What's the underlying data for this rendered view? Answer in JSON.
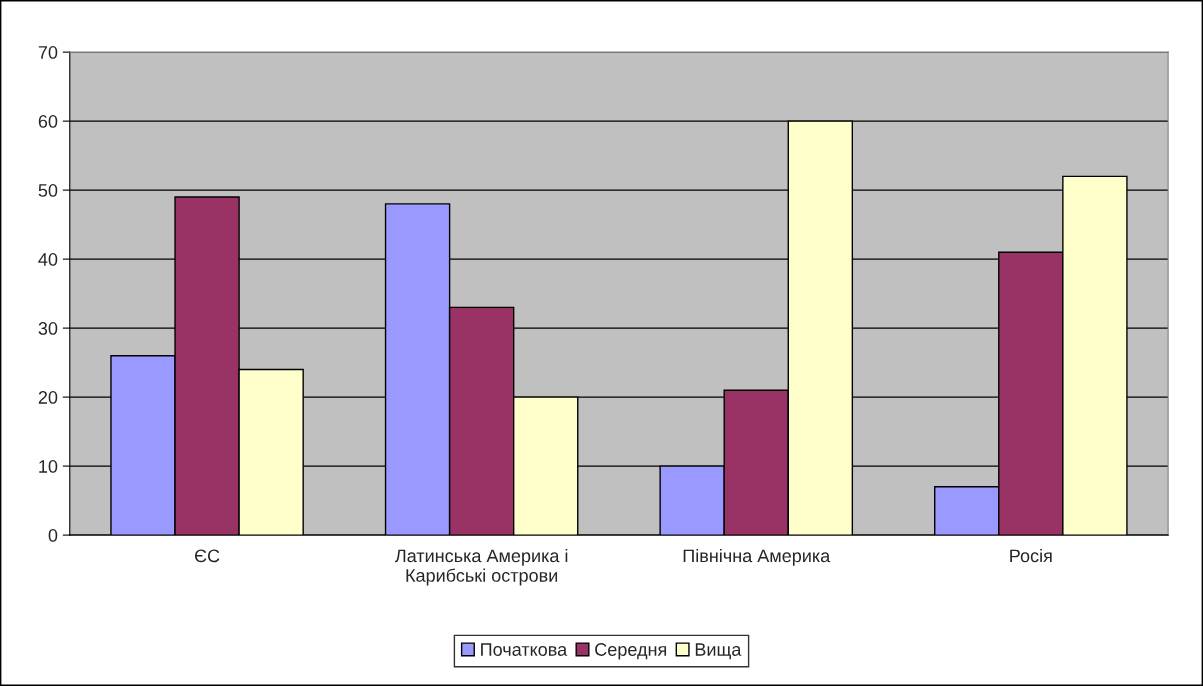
{
  "chart_data": {
    "type": "bar",
    "categories": [
      "ЄС",
      "Латинська Америка і\nКарибські острови",
      "Північна Америка",
      "Росія"
    ],
    "series": [
      {
        "name": "Початкова",
        "color": "#9999ff",
        "values": [
          26,
          48,
          10,
          7
        ]
      },
      {
        "name": "Середня",
        "color": "#993366",
        "values": [
          49,
          33,
          21,
          41
        ]
      },
      {
        "name": "Вища",
        "color": "#ffffcc",
        "values": [
          24,
          20,
          60,
          52
        ]
      }
    ],
    "ylim": [
      0,
      70
    ],
    "yticks": [
      0,
      10,
      20,
      30,
      40,
      50,
      60,
      70
    ],
    "grid": "y",
    "legend": "bottom"
  }
}
